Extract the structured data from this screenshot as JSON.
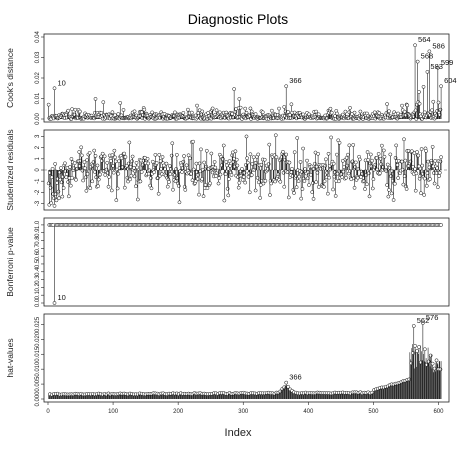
{
  "chart_data": {
    "type": "scatter",
    "title": "Diagnostic Plots",
    "xlabel": "Index",
    "x_ticks": [
      0,
      100,
      200,
      300,
      400,
      500,
      600
    ],
    "xlim": [
      0,
      610
    ],
    "n": 604,
    "grid": "off",
    "panels": [
      {
        "ylabel": "Cook's distance",
        "ylim": [
          0,
          0.04
        ],
        "y_ticks": [
          0.0,
          0.01,
          0.02,
          0.03,
          0.04
        ],
        "tick_labels": [
          "0.00",
          "0.01",
          "0.02",
          "0.03",
          "0.04"
        ],
        "style": "spikes",
        "reference_line": null,
        "highlighted": [
          {
            "index": 10,
            "label": "10",
            "y": 0.015
          },
          {
            "index": 366,
            "label": "366",
            "y": 0.016
          },
          {
            "index": 564,
            "label": "564",
            "y": 0.036
          },
          {
            "index": 586,
            "label": "586",
            "y": 0.033
          },
          {
            "index": 568,
            "label": "568",
            "y": 0.028
          },
          {
            "index": 583,
            "label": "583",
            "y": 0.023
          },
          {
            "index": 599,
            "label": "599",
            "y": 0.025
          },
          {
            "index": 604,
            "label": "604",
            "y": 0.016
          }
        ]
      },
      {
        "ylabel": "Studentized residuals",
        "ylim": [
          -3.3,
          3.3
        ],
        "y_ticks": [
          -3,
          -2,
          -1,
          0,
          1,
          2,
          3
        ],
        "tick_labels": [
          "-3",
          "-2",
          "-1",
          "0",
          "1",
          "2",
          "3"
        ],
        "style": "spikes",
        "reference_line": 0,
        "highlighted": []
      },
      {
        "ylabel": "Bonferroni p-value",
        "ylim": [
          0,
          1.05
        ],
        "y_ticks": [
          0.0,
          0.1,
          0.2,
          0.3,
          0.4,
          0.5,
          0.6,
          0.7,
          0.8,
          0.9,
          1.0
        ],
        "tick_labels": [
          "0.0",
          "0.1",
          "0.2",
          "0.3",
          "0.4",
          "0.5",
          "0.6",
          "0.7",
          "0.8",
          "0.9",
          "1.0"
        ],
        "style": "spikes-from-one",
        "reference_line": null,
        "highlighted": [
          {
            "index": 10,
            "label": "10",
            "y": 0.0
          }
        ]
      },
      {
        "ylabel": "hat-values",
        "ylim": [
          0,
          0.0275
        ],
        "y_ticks": [
          0.0,
          0.005,
          0.01,
          0.015,
          0.02,
          0.025
        ],
        "tick_labels": [
          "0.000",
          "0.005",
          "0.010",
          "0.015",
          "0.020",
          "0.025"
        ],
        "style": "spikes",
        "reference_line": null,
        "highlighted": [
          {
            "index": 366,
            "label": "366",
            "y": 0.0055
          },
          {
            "index": 562,
            "label": "562",
            "y": 0.0245
          },
          {
            "index": 576,
            "label": "576",
            "y": 0.0255
          }
        ]
      }
    ]
  }
}
